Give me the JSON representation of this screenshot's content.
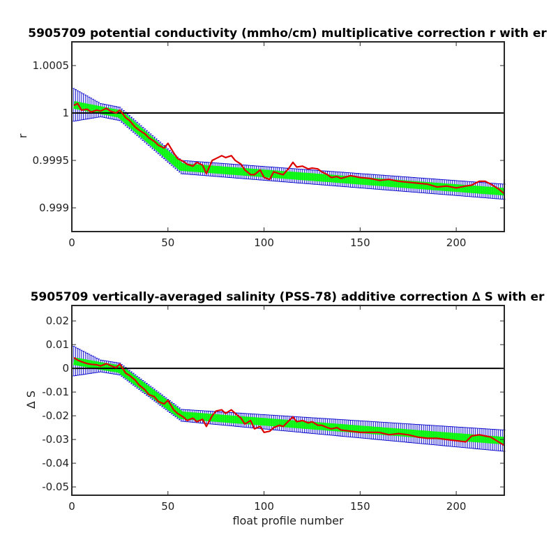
{
  "chart_data": [
    {
      "type": "line",
      "title": "5905709 potential conductivity (mmho/cm) multiplicative correction r with er",
      "xlabel": "",
      "ylabel": "r",
      "xlim": [
        0,
        225
      ],
      "ylim": [
        0.99875,
        1.00075
      ],
      "xticks": [
        0,
        50,
        100,
        150,
        200
      ],
      "yticks": [
        0.999,
        0.9995,
        1,
        1.0005
      ],
      "ytick_labels": [
        "0.999",
        "0.9995",
        "1",
        "1.0005"
      ],
      "reference_line": 1,
      "colors": {
        "fit": "#00ff00",
        "error_bars": "#0000cc",
        "raw": "#dd0000",
        "reference": "#000000"
      },
      "fit_knots_x": [
        0,
        15,
        25,
        57,
        225
      ],
      "fit_knots_y": [
        1.00009,
        1.00003,
        0.99999,
        0.99943,
        0.99917
      ],
      "error_halfwidth_x": [
        0,
        15,
        57,
        225
      ],
      "error_halfwidth_y": [
        0.00018,
        7e-05,
        7e-05,
        8e-05
      ],
      "raw_x": [
        1,
        3,
        5,
        8,
        10,
        13,
        15,
        18,
        20,
        23,
        25,
        28,
        30,
        33,
        35,
        38,
        40,
        43,
        45,
        48,
        50,
        53,
        55,
        58,
        60,
        63,
        65,
        68,
        70,
        73,
        75,
        78,
        80,
        83,
        85,
        88,
        90,
        93,
        95,
        98,
        100,
        103,
        105,
        108,
        110,
        113,
        115,
        117,
        120,
        123,
        125,
        128,
        130,
        133,
        135,
        138,
        140,
        145,
        150,
        155,
        160,
        165,
        170,
        175,
        180,
        185,
        190,
        195,
        200,
        205,
        208,
        212,
        215,
        218,
        222,
        225
      ],
      "raw_y": [
        1.00008,
        1.0001,
        1.00003,
        1.00004,
        1.00001,
        1.00003,
        1.00002,
        1.00005,
        1.00002,
        1.0,
        1.00003,
        0.99995,
        0.99992,
        0.99985,
        0.99982,
        0.99978,
        0.99974,
        0.9997,
        0.99966,
        0.99963,
        0.99968,
        0.99958,
        0.99952,
        0.99949,
        0.99946,
        0.99944,
        0.99948,
        0.99945,
        0.99936,
        0.9995,
        0.99952,
        0.99955,
        0.99953,
        0.99955,
        0.9995,
        0.99946,
        0.9994,
        0.99935,
        0.99935,
        0.9994,
        0.99932,
        0.9993,
        0.99938,
        0.99936,
        0.99935,
        0.99942,
        0.99948,
        0.99943,
        0.99944,
        0.99941,
        0.99942,
        0.99941,
        0.99938,
        0.99935,
        0.99932,
        0.99933,
        0.99931,
        0.99934,
        0.99932,
        0.99931,
        0.99929,
        0.9993,
        0.99928,
        0.99927,
        0.99926,
        0.99925,
        0.99922,
        0.99923,
        0.99921,
        0.99923,
        0.99924,
        0.99928,
        0.99928,
        0.99925,
        0.9992,
        0.99915
      ]
    },
    {
      "type": "line",
      "title": "5905709 vertically-averaged salinity (PSS-78) additive correction ∆ S with er",
      "xlabel": "float profile number",
      "ylabel": "∆ S",
      "xlim": [
        0,
        225
      ],
      "ylim": [
        -0.0535,
        0.0265
      ],
      "xticks": [
        0,
        50,
        100,
        150,
        200
      ],
      "yticks": [
        -0.05,
        -0.04,
        -0.03,
        -0.02,
        -0.01,
        0,
        0.01,
        0.02
      ],
      "ytick_labels": [
        "-0.05",
        "-0.04",
        "-0.03",
        "-0.02",
        "-0.01",
        "0",
        "0.01",
        "0.02"
      ],
      "reference_line": 0,
      "colors": {
        "fit": "#00ff00",
        "error_bars": "#0000cc",
        "raw": "#dd0000",
        "reference": "#000000"
      },
      "fit_knots_x": [
        0,
        15,
        25,
        57,
        225
      ],
      "fit_knots_y": [
        0.0032,
        0.001,
        -0.0003,
        -0.0198,
        -0.0305
      ],
      "error_halfwidth_x": [
        0,
        15,
        57,
        225
      ],
      "error_halfwidth_y": [
        0.0065,
        0.0025,
        0.0025,
        0.0045
      ],
      "raw_x": [
        1,
        3,
        5,
        8,
        10,
        13,
        15,
        18,
        20,
        23,
        25,
        28,
        30,
        33,
        35,
        38,
        40,
        43,
        45,
        48,
        50,
        53,
        55,
        58,
        60,
        63,
        65,
        68,
        70,
        73,
        75,
        78,
        80,
        83,
        85,
        88,
        90,
        93,
        95,
        98,
        100,
        103,
        105,
        108,
        110,
        113,
        115,
        117,
        120,
        123,
        125,
        128,
        130,
        133,
        135,
        138,
        140,
        145,
        150,
        155,
        160,
        165,
        170,
        175,
        180,
        185,
        190,
        195,
        200,
        205,
        208,
        212,
        215,
        218,
        222,
        225
      ],
      "raw_y": [
        0.0045,
        0.0035,
        0.0028,
        0.002,
        0.0017,
        0.0015,
        0.001,
        0.002,
        0.0012,
        0.0003,
        0.0018,
        -0.002,
        -0.003,
        -0.005,
        -0.007,
        -0.009,
        -0.011,
        -0.012,
        -0.014,
        -0.015,
        -0.0135,
        -0.0175,
        -0.019,
        -0.0205,
        -0.022,
        -0.021,
        -0.0225,
        -0.0215,
        -0.0245,
        -0.02,
        -0.018,
        -0.0175,
        -0.019,
        -0.0175,
        -0.019,
        -0.021,
        -0.0235,
        -0.022,
        -0.0255,
        -0.0245,
        -0.027,
        -0.0265,
        -0.025,
        -0.024,
        -0.0245,
        -0.022,
        -0.0205,
        -0.0225,
        -0.022,
        -0.023,
        -0.0225,
        -0.024,
        -0.024,
        -0.025,
        -0.0255,
        -0.025,
        -0.026,
        -0.0265,
        -0.027,
        -0.027,
        -0.027,
        -0.028,
        -0.0275,
        -0.028,
        -0.029,
        -0.0295,
        -0.0295,
        -0.03,
        -0.0305,
        -0.031,
        -0.0285,
        -0.028,
        -0.0285,
        -0.029,
        -0.031,
        -0.0325
      ]
    }
  ]
}
